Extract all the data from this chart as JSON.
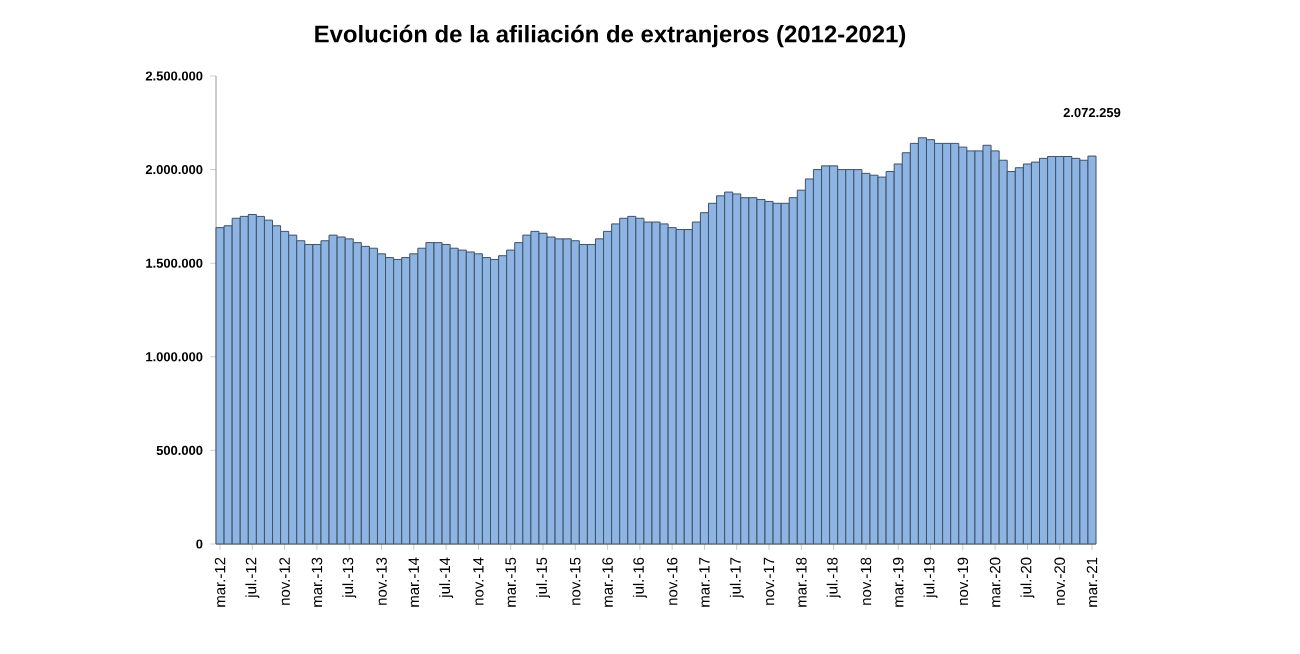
{
  "chart_data": {
    "type": "bar",
    "title": "Evolución de la afiliación de extranjeros (2012-2021)",
    "categories": [
      "mar.-12",
      null,
      null,
      null,
      "jul.-12",
      null,
      null,
      null,
      "nov.-12",
      null,
      null,
      null,
      "mar.-13",
      null,
      null,
      null,
      "jul.-13",
      null,
      null,
      null,
      "nov.-13",
      null,
      null,
      null,
      "mar.-14",
      null,
      null,
      null,
      "jul.-14",
      null,
      null,
      null,
      "nov.-14",
      null,
      null,
      null,
      "mar.-15",
      null,
      null,
      null,
      "jul.-15",
      null,
      null,
      null,
      "nov.-15",
      null,
      null,
      null,
      "mar.-16",
      null,
      null,
      null,
      "jul.-16",
      null,
      null,
      null,
      "nov.-16",
      null,
      null,
      null,
      "mar.-17",
      null,
      null,
      null,
      "jul.-17",
      null,
      null,
      null,
      "nov.-17",
      null,
      null,
      null,
      "mar.-18",
      null,
      null,
      null,
      "jul.-18",
      null,
      null,
      null,
      "nov.-18",
      null,
      null,
      null,
      "mar.-19",
      null,
      null,
      null,
      "jul.-19",
      null,
      null,
      null,
      "nov.-19",
      null,
      null,
      null,
      "mar.-20",
      null,
      null,
      null,
      "jul.-20",
      null,
      null,
      null,
      "nov.-20",
      null,
      null,
      null,
      "mar.-21"
    ],
    "values": [
      1690000,
      1700000,
      1740000,
      1750000,
      1760000,
      1750000,
      1730000,
      1700000,
      1670000,
      1650000,
      1620000,
      1600000,
      1600000,
      1620000,
      1650000,
      1640000,
      1630000,
      1610000,
      1590000,
      1580000,
      1550000,
      1530000,
      1520000,
      1530000,
      1550000,
      1580000,
      1610000,
      1610000,
      1600000,
      1580000,
      1570000,
      1560000,
      1550000,
      1530000,
      1520000,
      1540000,
      1570000,
      1610000,
      1650000,
      1670000,
      1660000,
      1640000,
      1630000,
      1630000,
      1620000,
      1600000,
      1600000,
      1630000,
      1670000,
      1710000,
      1740000,
      1750000,
      1740000,
      1720000,
      1720000,
      1710000,
      1690000,
      1680000,
      1680000,
      1720000,
      1770000,
      1820000,
      1860000,
      1880000,
      1870000,
      1850000,
      1850000,
      1840000,
      1830000,
      1820000,
      1820000,
      1850000,
      1890000,
      1950000,
      2000000,
      2020000,
      2020000,
      2000000,
      2000000,
      2000000,
      1980000,
      1970000,
      1960000,
      1990000,
      2030000,
      2090000,
      2140000,
      2170000,
      2160000,
      2140000,
      2140000,
      2140000,
      2120000,
      2100000,
      2100000,
      2130000,
      2100000,
      2050000,
      1990000,
      2010000,
      2030000,
      2040000,
      2060000,
      2070000,
      2070000,
      2070000,
      2060000,
      2050000,
      2072259
    ],
    "color": "#8db4e2",
    "ylim": [
      0,
      2500000
    ],
    "yticks": [
      {
        "value": 0,
        "label": "0"
      },
      {
        "value": 500000,
        "label": "500.000"
      },
      {
        "value": 1000000,
        "label": "1.000.000"
      },
      {
        "value": 1500000,
        "label": "1.500.000"
      },
      {
        "value": 2000000,
        "label": "2.000.000"
      },
      {
        "value": 2500000,
        "label": "2.500.000"
      }
    ],
    "value_labels": [
      null,
      null,
      null,
      null,
      null,
      null,
      null,
      null,
      null,
      null,
      null,
      null,
      null,
      null,
      null,
      null,
      null,
      null,
      null,
      null,
      null,
      null,
      null,
      null,
      null,
      null,
      null,
      null,
      null,
      null,
      null,
      null,
      null,
      null,
      null,
      null,
      null,
      null,
      null,
      null,
      null,
      null,
      null,
      null,
      null,
      null,
      null,
      null,
      null,
      null,
      null,
      null,
      null,
      null,
      null,
      null,
      null,
      null,
      null,
      null,
      null,
      null,
      null,
      null,
      null,
      null,
      null,
      null,
      null,
      null,
      null,
      null,
      null,
      null,
      null,
      null,
      null,
      null,
      null,
      null,
      null,
      null,
      null,
      null,
      null,
      null,
      null,
      null,
      null,
      null,
      null,
      null,
      null,
      null,
      null,
      null,
      null,
      null,
      null,
      null,
      null,
      null,
      null,
      null,
      null,
      null,
      null,
      null,
      "2.072.259"
    ]
  }
}
